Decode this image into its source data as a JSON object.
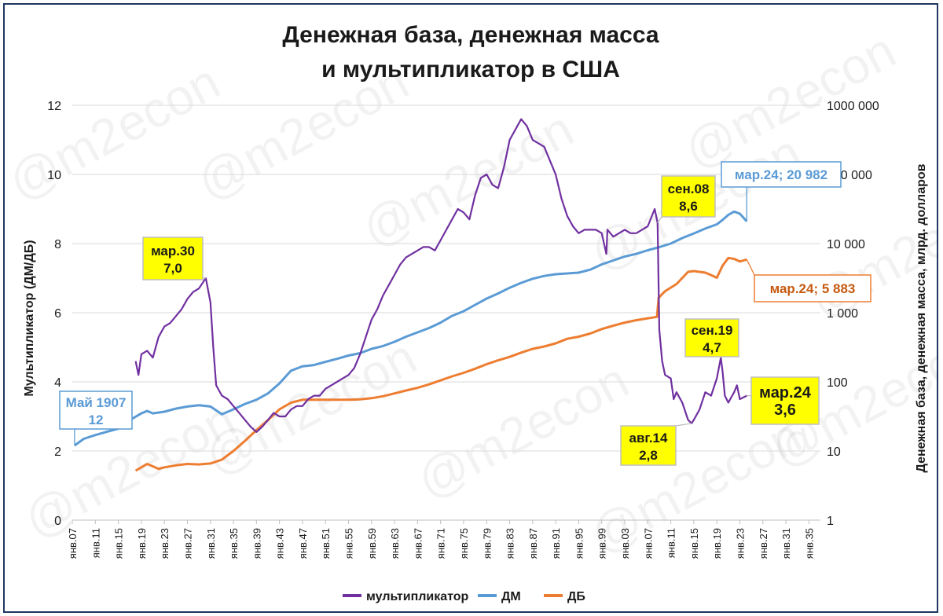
{
  "watermark": "@m2econ",
  "chart_data": {
    "type": "line",
    "title_lines": [
      "Денежная база, денежная масса",
      "и мультипликатор в США"
    ],
    "ylabel_left": "Мультипликатор (ДМ/ДБ)",
    "ylabel_right": "Денежная база, денежная масса, млрд. долларов",
    "ylim_left": [
      0,
      12
    ],
    "yticks_left": [
      "0",
      "2",
      "4",
      "6",
      "8",
      "10",
      "12"
    ],
    "ylim_right_log": [
      1,
      1000000
    ],
    "yticks_right": [
      "1",
      "10",
      "100",
      "1 000",
      "10 000",
      "100 000",
      "1000 000"
    ],
    "xlim": [
      1907,
      2037
    ],
    "xticks": [
      "янв.07",
      "янв.11",
      "янв.15",
      "янв.19",
      "янв.23",
      "янв.27",
      "янв.31",
      "янв.35",
      "янв.39",
      "янв.43",
      "янв.47",
      "янв.51",
      "янв.55",
      "янв.59",
      "янв.63",
      "янв.67",
      "янв.71",
      "янв.75",
      "янв.79",
      "янв.83",
      "янв.87",
      "янв.91",
      "янв.95",
      "янв.99",
      "янв.03",
      "янв.07",
      "янв.11",
      "янв.15",
      "янв.19",
      "янв.23",
      "янв.27",
      "янв.31",
      "янв.35"
    ],
    "grid": true,
    "legend_position": "bottom",
    "series": [
      {
        "name": "мультипликатор",
        "axis": "left",
        "color": "#7030a0",
        "points": [
          [
            1918,
            4.6
          ],
          [
            1918.5,
            4.2
          ],
          [
            1919,
            4.8
          ],
          [
            1920,
            4.9
          ],
          [
            1921,
            4.7
          ],
          [
            1922,
            5.3
          ],
          [
            1923,
            5.6
          ],
          [
            1924,
            5.7
          ],
          [
            1925,
            5.9
          ],
          [
            1926,
            6.1
          ],
          [
            1927,
            6.4
          ],
          [
            1928,
            6.6
          ],
          [
            1929,
            6.7
          ],
          [
            1930.2,
            7.0
          ],
          [
            1931,
            6.3
          ],
          [
            1931.5,
            5.0
          ],
          [
            1932,
            3.9
          ],
          [
            1933,
            3.6
          ],
          [
            1934,
            3.5
          ],
          [
            1935,
            3.3
          ],
          [
            1936,
            3.1
          ],
          [
            1937,
            2.9
          ],
          [
            1938,
            2.7
          ],
          [
            1939,
            2.55
          ],
          [
            1940,
            2.7
          ],
          [
            1941,
            2.9
          ],
          [
            1942,
            3.1
          ],
          [
            1943,
            3.0
          ],
          [
            1944,
            3.0
          ],
          [
            1945,
            3.2
          ],
          [
            1946,
            3.3
          ],
          [
            1947,
            3.3
          ],
          [
            1948,
            3.5
          ],
          [
            1949,
            3.6
          ],
          [
            1950,
            3.6
          ],
          [
            1951,
            3.8
          ],
          [
            1952,
            3.9
          ],
          [
            1953,
            4.0
          ],
          [
            1954,
            4.1
          ],
          [
            1955,
            4.2
          ],
          [
            1956,
            4.4
          ],
          [
            1957,
            4.8
          ],
          [
            1958,
            5.3
          ],
          [
            1959,
            5.8
          ],
          [
            1960,
            6.1
          ],
          [
            1961,
            6.5
          ],
          [
            1962,
            6.8
          ],
          [
            1963,
            7.1
          ],
          [
            1964,
            7.4
          ],
          [
            1965,
            7.6
          ],
          [
            1966,
            7.7
          ],
          [
            1967,
            7.8
          ],
          [
            1968,
            7.9
          ],
          [
            1969,
            7.9
          ],
          [
            1970,
            7.8
          ],
          [
            1971,
            8.1
          ],
          [
            1972,
            8.4
          ],
          [
            1973,
            8.7
          ],
          [
            1974,
            9.0
          ],
          [
            1975,
            8.9
          ],
          [
            1976,
            8.7
          ],
          [
            1977,
            9.4
          ],
          [
            1978,
            9.9
          ],
          [
            1979,
            10.0
          ],
          [
            1980,
            9.7
          ],
          [
            1981,
            9.6
          ],
          [
            1982,
            10.2
          ],
          [
            1983,
            11.0
          ],
          [
            1984,
            11.3
          ],
          [
            1985,
            11.6
          ],
          [
            1986,
            11.4
          ],
          [
            1987,
            11.0
          ],
          [
            1988,
            10.9
          ],
          [
            1989,
            10.8
          ],
          [
            1990,
            10.4
          ],
          [
            1991,
            10.0
          ],
          [
            1992,
            9.3
          ],
          [
            1993,
            8.8
          ],
          [
            1994,
            8.5
          ],
          [
            1995,
            8.3
          ],
          [
            1996,
            8.4
          ],
          [
            1997,
            8.4
          ],
          [
            1998,
            8.4
          ],
          [
            1999,
            8.3
          ],
          [
            1999.8,
            7.7
          ],
          [
            2000,
            8.4
          ],
          [
            2001,
            8.2
          ],
          [
            2002,
            8.3
          ],
          [
            2003,
            8.4
          ],
          [
            2004,
            8.3
          ],
          [
            2005,
            8.3
          ],
          [
            2006,
            8.4
          ],
          [
            2007,
            8.5
          ],
          [
            2008.2,
            9.0
          ],
          [
            2008.7,
            8.6
          ],
          [
            2009,
            5.5
          ],
          [
            2009.5,
            4.6
          ],
          [
            2010,
            4.2
          ],
          [
            2011,
            4.1
          ],
          [
            2011.5,
            3.5
          ],
          [
            2012,
            3.7
          ],
          [
            2013,
            3.4
          ],
          [
            2014,
            2.9
          ],
          [
            2014.6,
            2.8
          ],
          [
            2015,
            2.9
          ],
          [
            2016,
            3.2
          ],
          [
            2017,
            3.7
          ],
          [
            2018,
            3.6
          ],
          [
            2019,
            4.1
          ],
          [
            2019.7,
            4.7
          ],
          [
            2020,
            4.3
          ],
          [
            2020.4,
            3.6
          ],
          [
            2021,
            3.4
          ],
          [
            2022,
            3.7
          ],
          [
            2022.5,
            3.9
          ],
          [
            2023,
            3.5
          ],
          [
            2024.2,
            3.6
          ]
        ]
      },
      {
        "name": "ДМ",
        "axis": "right",
        "color": "#5b9bd5",
        "points": [
          [
            1907.4,
            12
          ],
          [
            1909,
            15
          ],
          [
            1911,
            17
          ],
          [
            1913,
            19
          ],
          [
            1915,
            21
          ],
          [
            1917,
            28
          ],
          [
            1919,
            35
          ],
          [
            1920,
            38
          ],
          [
            1921,
            35
          ],
          [
            1923,
            37
          ],
          [
            1925,
            41
          ],
          [
            1927,
            44
          ],
          [
            1929,
            46
          ],
          [
            1931,
            44
          ],
          [
            1933,
            34
          ],
          [
            1935,
            40
          ],
          [
            1937,
            48
          ],
          [
            1939,
            55
          ],
          [
            1941,
            68
          ],
          [
            1943,
            95
          ],
          [
            1945,
            145
          ],
          [
            1947,
            168
          ],
          [
            1949,
            175
          ],
          [
            1951,
            195
          ],
          [
            1953,
            215
          ],
          [
            1955,
            240
          ],
          [
            1957,
            260
          ],
          [
            1959,
            300
          ],
          [
            1961,
            330
          ],
          [
            1963,
            380
          ],
          [
            1965,
            450
          ],
          [
            1967,
            520
          ],
          [
            1969,
            600
          ],
          [
            1971,
            720
          ],
          [
            1973,
            900
          ],
          [
            1975,
            1050
          ],
          [
            1977,
            1300
          ],
          [
            1979,
            1600
          ],
          [
            1981,
            1900
          ],
          [
            1983,
            2300
          ],
          [
            1985,
            2700
          ],
          [
            1987,
            3100
          ],
          [
            1989,
            3400
          ],
          [
            1991,
            3600
          ],
          [
            1993,
            3700
          ],
          [
            1995,
            3800
          ],
          [
            1997,
            4200
          ],
          [
            1999,
            5000
          ],
          [
            2001,
            5700
          ],
          [
            2003,
            6500
          ],
          [
            2005,
            7100
          ],
          [
            2007,
            8000
          ],
          [
            2009,
            8900
          ],
          [
            2011,
            10000
          ],
          [
            2013,
            12000
          ],
          [
            2015,
            14000
          ],
          [
            2017,
            16500
          ],
          [
            2019,
            19000
          ],
          [
            2020,
            22000
          ],
          [
            2021,
            26000
          ],
          [
            2022,
            29000
          ],
          [
            2023,
            27000
          ],
          [
            2024.2,
            20982
          ]
        ]
      },
      {
        "name": "ДБ",
        "axis": "right",
        "color": "#ed7d31",
        "points": [
          [
            1918,
            5.2
          ],
          [
            1919,
            5.8
          ],
          [
            1920,
            6.5
          ],
          [
            1921,
            6.0
          ],
          [
            1922,
            5.5
          ],
          [
            1923,
            5.8
          ],
          [
            1925,
            6.2
          ],
          [
            1927,
            6.5
          ],
          [
            1929,
            6.4
          ],
          [
            1931,
            6.6
          ],
          [
            1933,
            7.5
          ],
          [
            1935,
            10
          ],
          [
            1937,
            14
          ],
          [
            1939,
            20
          ],
          [
            1941,
            28
          ],
          [
            1943,
            40
          ],
          [
            1945,
            50
          ],
          [
            1947,
            55
          ],
          [
            1949,
            55
          ],
          [
            1951,
            55
          ],
          [
            1953,
            55
          ],
          [
            1955,
            55
          ],
          [
            1957,
            56
          ],
          [
            1959,
            58
          ],
          [
            1961,
            62
          ],
          [
            1963,
            68
          ],
          [
            1965,
            75
          ],
          [
            1967,
            82
          ],
          [
            1969,
            92
          ],
          [
            1971,
            105
          ],
          [
            1973,
            120
          ],
          [
            1975,
            135
          ],
          [
            1977,
            155
          ],
          [
            1979,
            180
          ],
          [
            1981,
            205
          ],
          [
            1983,
            230
          ],
          [
            1985,
            265
          ],
          [
            1987,
            300
          ],
          [
            1989,
            325
          ],
          [
            1991,
            360
          ],
          [
            1993,
            420
          ],
          [
            1995,
            450
          ],
          [
            1997,
            500
          ],
          [
            1999,
            580
          ],
          [
            2001,
            650
          ],
          [
            2003,
            720
          ],
          [
            2005,
            780
          ],
          [
            2007,
            830
          ],
          [
            2008.6,
            870
          ],
          [
            2008.9,
            1650
          ],
          [
            2010,
            2050
          ],
          [
            2012,
            2600
          ],
          [
            2014,
            3900
          ],
          [
            2015,
            4000
          ],
          [
            2016,
            3900
          ],
          [
            2017,
            3800
          ],
          [
            2018,
            3500
          ],
          [
            2019,
            3200
          ],
          [
            2020,
            4800
          ],
          [
            2021,
            6200
          ],
          [
            2022,
            6000
          ],
          [
            2023,
            5500
          ],
          [
            2024.2,
            5883
          ]
        ]
      }
    ],
    "annotations": [
      {
        "text": [
          "Май 1907",
          "12"
        ],
        "style": "blue"
      },
      {
        "text": [
          "мар.30",
          "7,0"
        ],
        "style": "yellow"
      },
      {
        "text": [
          "сен.08",
          "8,6"
        ],
        "style": "yellow"
      },
      {
        "text": [
          "мар.24; 20 982"
        ],
        "style": "blue"
      },
      {
        "text": [
          "мар.24;  5 883"
        ],
        "style": "orange"
      },
      {
        "text": [
          "сен.19",
          "4,7"
        ],
        "style": "yellow"
      },
      {
        "text": [
          "авг.14",
          "2,8"
        ],
        "style": "yellow"
      },
      {
        "text": [
          "мар.24",
          "3,6"
        ],
        "style": "yellow"
      }
    ]
  }
}
